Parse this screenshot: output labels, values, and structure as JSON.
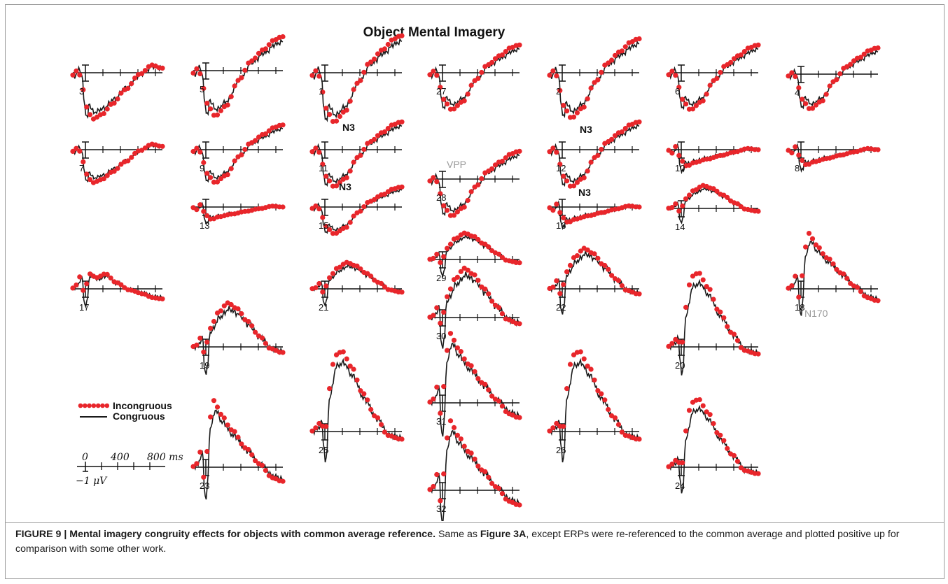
{
  "figure": {
    "title": "Object Mental Imagery",
    "legend": {
      "incongruous": "Incongruous",
      "congruous": "Congruous"
    },
    "scale": {
      "t0": "0",
      "t400": "400",
      "t800": "800 ms",
      "amp": "−1 μV"
    },
    "colors": {
      "incongruous": "#e8262b",
      "congruous": "#1a1a1a",
      "gray_label": "#9a9a9a"
    },
    "annotations": {
      "n3": "N3",
      "vpp": "VPP",
      "n170": "N170"
    },
    "channels": [
      "1",
      "2",
      "3",
      "4",
      "5",
      "6",
      "7",
      "8",
      "9",
      "10",
      "11",
      "12",
      "13",
      "14",
      "15",
      "16",
      "17",
      "18",
      "19",
      "20",
      "21",
      "22",
      "23",
      "24",
      "25",
      "26",
      "27",
      "28",
      "29",
      "30",
      "31",
      "32"
    ]
  },
  "caption": {
    "lead": "FIGURE 9 | Mental imagery congruity effects for objects with common average reference.",
    "text1": " Same as ",
    "ref": "Figure 3A",
    "text2": ", except ERPs were re-referenced to the common average and plotted positive up for comparison with some other work."
  }
}
